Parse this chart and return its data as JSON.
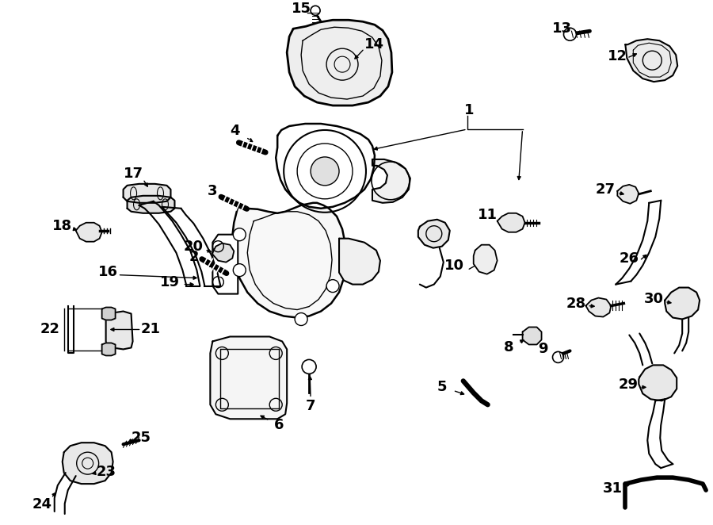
{
  "background_color": "#ffffff",
  "fig_width": 9.0,
  "fig_height": 6.62,
  "dpi": 100,
  "line_color": "#000000",
  "font_size": 13
}
